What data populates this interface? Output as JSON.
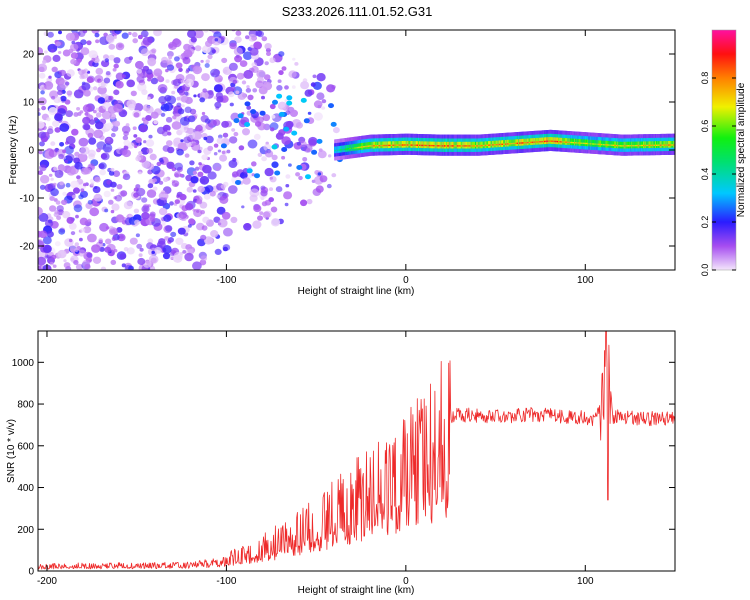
{
  "title": "S233.2026.111.01.52.G31",
  "colors": {
    "snr_line": "#ee2a2a",
    "axis": "#000000",
    "background": "#ffffff"
  },
  "chart_data": [
    {
      "type": "heatmap",
      "title": "S233.2026.111.01.52.G31",
      "xlabel": "Height of straight line (km)",
      "ylabel": "Frequency (Hz)",
      "xlim": [
        -205,
        150
      ],
      "ylim": [
        -25,
        25
      ],
      "x_ticks": [
        -200,
        -100,
        0,
        100
      ],
      "x_tick_labels": [
        "-200",
        "-100",
        "0",
        "100"
      ],
      "y_ticks": [
        -20,
        -10,
        0,
        10,
        20
      ],
      "y_tick_labels": [
        "-20",
        "-10",
        "0",
        "10",
        "20"
      ],
      "colorbar": {
        "label": "Normalized spectral amplitude",
        "range": [
          0,
          1
        ],
        "ticks": [
          0,
          0.2,
          0.4,
          0.6,
          0.8
        ],
        "tick_labels": [
          "0.0",
          "0.2",
          "0.4",
          "0.6",
          "0.8"
        ],
        "colormap": "rainbow"
      },
      "dominant_frequency_track": {
        "x": [
          -40,
          -30,
          -20,
          0,
          20,
          40,
          60,
          80,
          100,
          120,
          150
        ],
        "freq": [
          0,
          0.5,
          1,
          1.2,
          1,
          1,
          1.5,
          2,
          1.5,
          1,
          1.2
        ],
        "amplitude": [
          0.4,
          0.6,
          0.8,
          0.85,
          0.9,
          0.8,
          0.85,
          0.9,
          0.7,
          0.75,
          0.8
        ]
      }
    },
    {
      "type": "line",
      "xlabel": "Height of straight line (km)",
      "ylabel": "SNR (10 * v/v)",
      "xlim": [
        -205,
        150
      ],
      "ylim": [
        0,
        1150
      ],
      "x_ticks": [
        -200,
        -100,
        0,
        100
      ],
      "x_tick_labels": [
        "-200",
        "-100",
        "0",
        "100"
      ],
      "y_ticks": [
        0,
        200,
        400,
        600,
        800,
        1000
      ],
      "y_tick_labels": [
        "0",
        "200",
        "400",
        "600",
        "800",
        "1000"
      ],
      "series": [
        {
          "name": "SNR",
          "x": [
            -205,
            -180,
            -150,
            -120,
            -100,
            -80,
            -60,
            -40,
            -20,
            0,
            10,
            20,
            25,
            30,
            50,
            70,
            90,
            105,
            110,
            112,
            115,
            130,
            150
          ],
          "y": [
            25,
            30,
            30,
            35,
            60,
            120,
            200,
            300,
            420,
            520,
            600,
            700,
            740,
            750,
            740,
            750,
            740,
            730,
            780,
            1150,
            740,
            730,
            730
          ]
        }
      ]
    }
  ]
}
